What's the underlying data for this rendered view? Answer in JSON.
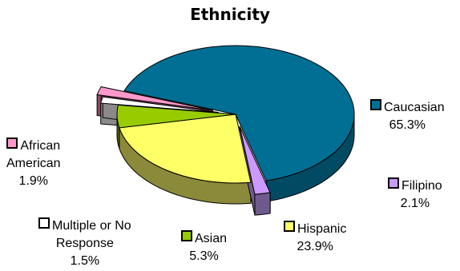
{
  "chart_data": {
    "type": "pie",
    "title": "Ethnicity",
    "slices": [
      {
        "label": "Caucasian",
        "value": 65.3,
        "value_label": "65.3%",
        "color": "#006f93",
        "dark": "#004b63"
      },
      {
        "label": "Filipino",
        "value": 2.1,
        "value_label": "2.1%",
        "color": "#cc99ff",
        "dark": "#6e5a8c"
      },
      {
        "label": "Hispanic",
        "value": 23.9,
        "value_label": "23.9%",
        "color": "#ffff66",
        "dark": "#8a8a3a"
      },
      {
        "label": "Asian",
        "value": 5.3,
        "value_label": "5.3%",
        "color": "#99cc00",
        "dark": "#536e00"
      },
      {
        "label": "Multiple or No Response",
        "label_lines": [
          "Multiple or No",
          "Response"
        ],
        "value": 1.5,
        "value_label": "1.5%",
        "color": "#ffffff",
        "dark": "#8a8a8a"
      },
      {
        "label": "African American",
        "label_lines": [
          "African",
          "American"
        ],
        "value": 1.9,
        "value_label": "1.9%",
        "color": "#ff99cc",
        "dark": "#8c4a66"
      }
    ],
    "exploded": [
      "Filipino",
      "African American",
      "Multiple or No Response"
    ],
    "style": "3d"
  }
}
